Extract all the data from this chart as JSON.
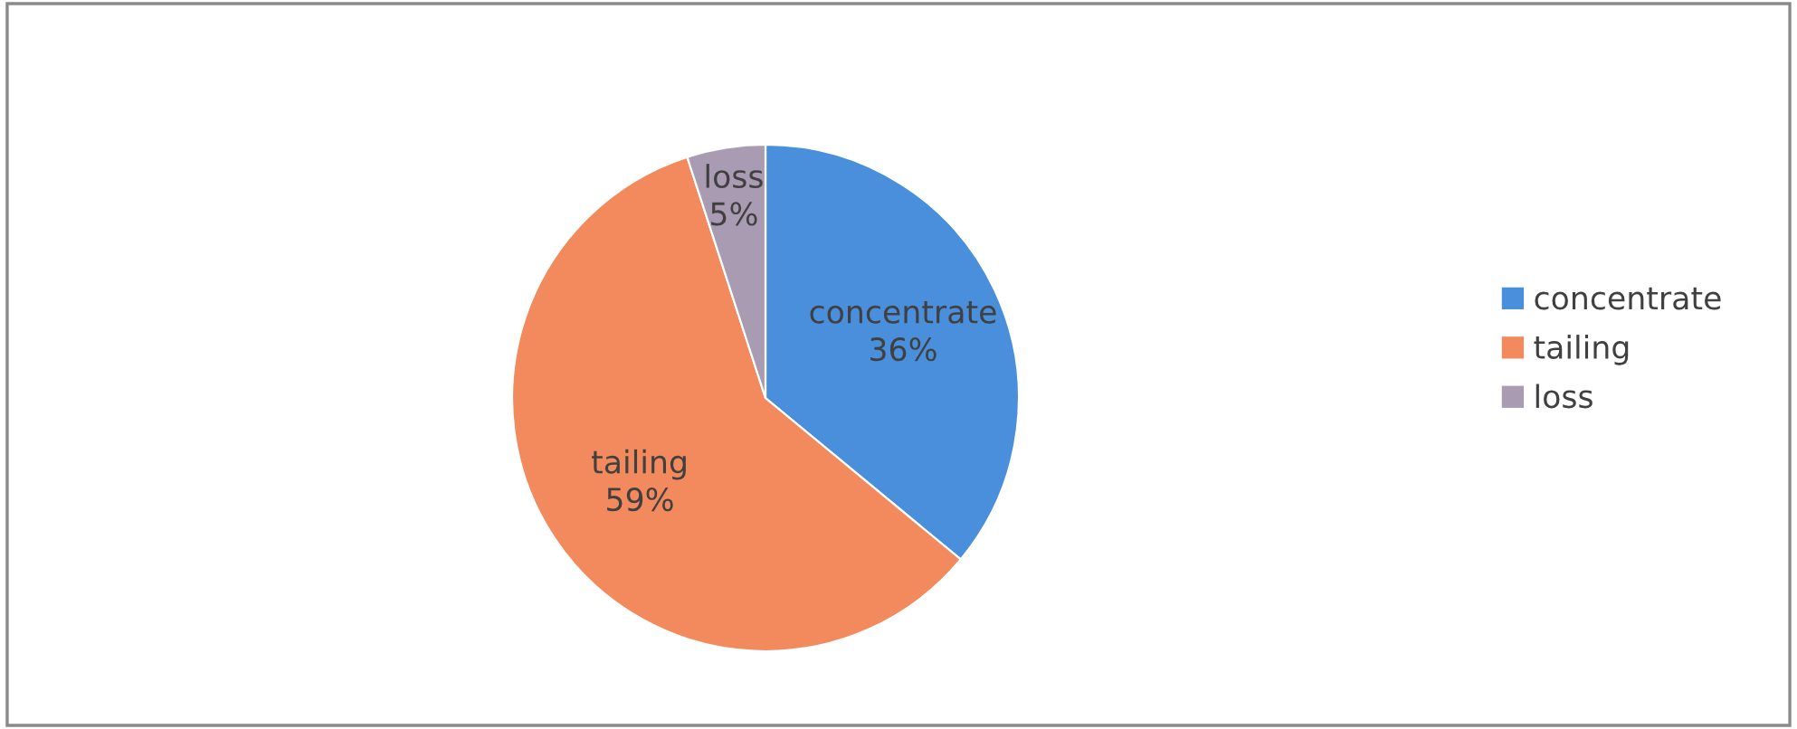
{
  "chart_data": {
    "type": "pie",
    "categories": [
      "concentrate",
      "tailing",
      "loss"
    ],
    "values": [
      36,
      59,
      5
    ],
    "colors": [
      "#4a8fdc",
      "#f28a5e",
      "#a99bb2"
    ],
    "value_labels": [
      "36%",
      "59%",
      "5%"
    ],
    "legend": "right"
  }
}
